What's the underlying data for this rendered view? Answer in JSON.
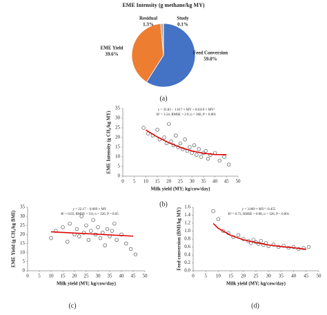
{
  "chart_data": [
    {
      "type": "pie",
      "title": "EME Intensity (g methane/kg MY)",
      "caption": "(a)",
      "categories": [
        "Feed Conversion",
        "EME Yield",
        "Residual",
        "Study"
      ],
      "values": [
        59.0,
        39.6,
        1.3,
        0.1
      ],
      "value_labels": [
        "59.0%",
        "39.6%",
        "1.3%",
        "0.1%"
      ],
      "colors": [
        "#4472c4",
        "#ed7d31",
        "#a5a5a5",
        "#ffc000"
      ]
    },
    {
      "type": "scatter",
      "caption": "(b)",
      "xlabel": "Milk yield (MY; kg/cow/day)",
      "ylabel": "EME Intensity (g CH₄/kg MY)",
      "annotations": [
        "y = 32.83 − 1.017 × MY + 0.0119 × MY²",
        "R² = 3.54; RMSE = 2.9; n = 360, P < 0.001"
      ],
      "xlim": [
        0,
        50
      ],
      "xticks": [
        0,
        5,
        10,
        15,
        20,
        25,
        30,
        35,
        40,
        45,
        50
      ],
      "ylim": [
        0,
        35
      ],
      "yticks": [
        0,
        5,
        10,
        15,
        20,
        25,
        30,
        35
      ],
      "color": "#444444",
      "x": [
        9,
        11,
        13,
        15,
        16,
        18,
        19,
        20,
        21,
        22,
        23,
        24,
        25,
        26,
        27,
        28,
        29,
        30,
        31,
        32,
        33,
        34,
        35,
        36,
        37,
        38,
        40,
        42,
        44,
        46
      ],
      "values": [
        25,
        22,
        21,
        24,
        19,
        20,
        17,
        27,
        18,
        16,
        21,
        15,
        17,
        14,
        19,
        13,
        15,
        12,
        16,
        11,
        14,
        10,
        12,
        13,
        9,
        11,
        12,
        8,
        10,
        6
      ],
      "fit": {
        "color": "#e00000",
        "x": [
          10,
          15,
          20,
          25,
          30,
          35,
          40,
          45
        ],
        "values": [
          23.85,
          20.26,
          17.25,
          14.84,
          13.02,
          11.8,
          11.2,
          11.1
        ]
      }
    },
    {
      "type": "scatter",
      "caption": "(c)",
      "xlabel": "Milk yield (MY; kg/cow/day)",
      "ylabel": "EME Yield (g CH₄/kg BMI)",
      "annotations": [
        "y = 22.17 − 0.069 × MY",
        "R² = 0.03, RMSE = 3.8, n = 326, P = 0.05"
      ],
      "xlim": [
        0,
        50
      ],
      "xticks": [
        0,
        5,
        10,
        15,
        20,
        25,
        30,
        35,
        40,
        45,
        50
      ],
      "ylim": [
        0,
        35
      ],
      "yticks": [
        0,
        5,
        10,
        15,
        20,
        25,
        30,
        35
      ],
      "color": "#444444",
      "x": [
        10,
        12,
        15,
        17,
        18,
        20,
        21,
        22,
        23,
        24,
        25,
        26,
        27,
        28,
        29,
        30,
        31,
        32,
        33,
        34,
        35,
        36,
        37,
        38,
        40,
        42,
        44,
        46
      ],
      "values": [
        18,
        22,
        24,
        16,
        26,
        20,
        23,
        19,
        30,
        21,
        25,
        17,
        22,
        28,
        20,
        24,
        18,
        21,
        14,
        23,
        19,
        22,
        26,
        17,
        20,
        15,
        12,
        9
      ],
      "fit": {
        "color": "#e00000",
        "x": [
          10,
          45
        ],
        "values": [
          21.48,
          19.07
        ]
      }
    },
    {
      "type": "scatter",
      "caption": "(d)",
      "xlabel": "Milk yield (MY; kg/cow/day)",
      "ylabel": "Feed conversion (BMI/kg MY)",
      "annotations": [
        "y = 3.069 × MY^−0.455",
        "R² = 0.72, RMSE = 0.08, n = 326, P < 0.001"
      ],
      "xlim": [
        0,
        50
      ],
      "xticks": [
        0,
        5,
        10,
        15,
        20,
        25,
        30,
        35,
        40,
        45,
        50
      ],
      "ylim": [
        0,
        1.6
      ],
      "yticks": [
        {
          "value": 0,
          "label": "0.0"
        },
        0.2,
        0.4,
        0.6,
        0.8,
        {
          "value": 1,
          "label": "1.0"
        },
        1.2,
        1.4,
        1.6
      ],
      "color": "#444444",
      "x": [
        8,
        10,
        12,
        14,
        16,
        18,
        20,
        22,
        23,
        24,
        25,
        26,
        27,
        28,
        29,
        30,
        32,
        34,
        36,
        38,
        40,
        42,
        44,
        46
      ],
      "values": [
        1.5,
        1.3,
        1.0,
        0.95,
        0.85,
        0.9,
        0.8,
        0.75,
        0.7,
        0.78,
        0.72,
        0.68,
        0.75,
        0.65,
        0.7,
        0.62,
        0.66,
        0.6,
        0.63,
        0.58,
        0.6,
        0.55,
        0.57,
        0.6
      ],
      "fit": {
        "color": "#e00000",
        "x": [
          8,
          10,
          15,
          20,
          25,
          30,
          35,
          40,
          45
        ],
        "values": [
          1.19,
          1.07,
          0.89,
          0.78,
          0.71,
          0.65,
          0.61,
          0.58,
          0.54
        ]
      }
    }
  ]
}
